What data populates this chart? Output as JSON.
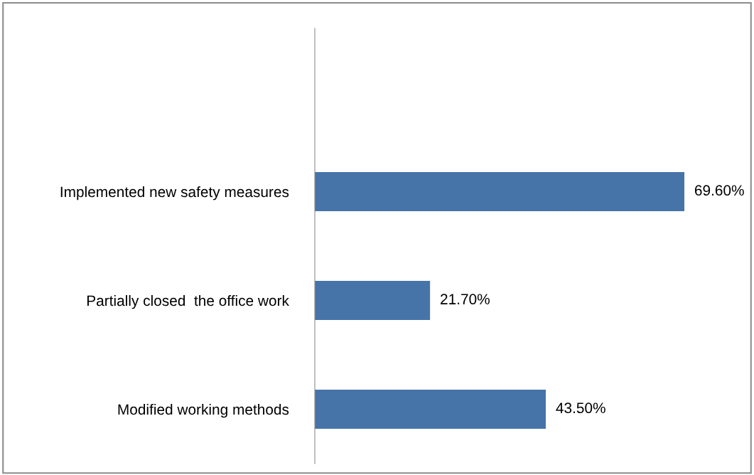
{
  "chart_data": {
    "type": "bar",
    "orientation": "horizontal",
    "categories": [
      "Implemented new safety measures",
      "Partially closed  the office work",
      "Modified working methods"
    ],
    "values": [
      69.6,
      21.7,
      43.5
    ],
    "value_labels": [
      "69.60%",
      "21.70%",
      "43.50%"
    ],
    "color": "#4674a8",
    "grid": false,
    "legend": false,
    "tick_labels": "y"
  }
}
